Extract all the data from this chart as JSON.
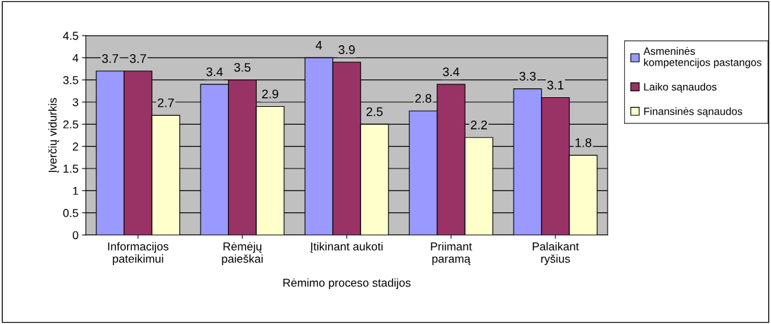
{
  "chart_data": {
    "type": "bar",
    "xlabel": "Rėmimo proceso stadijos",
    "ylabel": "Įverčių vidurkis",
    "categories": [
      "Informacijos\npateikimui",
      "Rėmėjų\npaieškai",
      "Įtikinant aukoti",
      "Priimant\nparamą",
      "Palaikant\nryšius"
    ],
    "series": [
      {
        "name": "Asmeninės\nkompetencijos pastangos",
        "color": "#9999ff",
        "values": [
          3.7,
          3.4,
          4,
          2.8,
          3.3
        ]
      },
      {
        "name": "Laiko sąnaudos",
        "color": "#993366",
        "values": [
          3.7,
          3.5,
          3.9,
          3.4,
          3.1
        ]
      },
      {
        "name": "Finansinės sąnaudos",
        "color": "#ffffcc",
        "values": [
          2.7,
          2.9,
          2.5,
          2.2,
          1.8
        ]
      }
    ],
    "ylim": [
      0,
      4.5
    ],
    "yticks": [
      0,
      0.5,
      1,
      1.5,
      2,
      2.5,
      3,
      3.5,
      4,
      4.5
    ],
    "grid": "y",
    "legend": "right",
    "data_labels": true
  }
}
